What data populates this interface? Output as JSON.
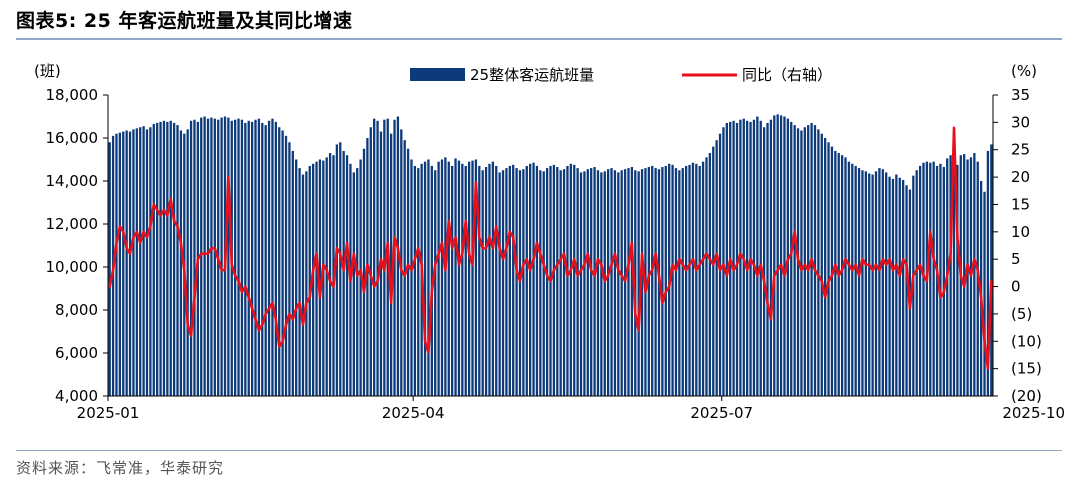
{
  "title": "图表5:   25 年客运航班量及其同比增速",
  "source": "资料来源：飞常准，华泰研究",
  "chart_data": {
    "type": "bar+line",
    "left_unit": "(班)",
    "right_unit": "(%)",
    "left_axis": {
      "min": 4000,
      "max": 18000,
      "ticks": [
        4000,
        6000,
        8000,
        10000,
        12000,
        14000,
        16000,
        18000
      ],
      "tick_labels": [
        "4,000",
        "6,000",
        "8,000",
        "10,000",
        "12,000",
        "14,000",
        "16,000",
        "18,000"
      ]
    },
    "right_axis": {
      "min": -20,
      "max": 35,
      "ticks": [
        -20,
        -15,
        -10,
        -5,
        0,
        5,
        10,
        15,
        20,
        25,
        30,
        35
      ],
      "tick_labels": [
        "(20)",
        "(15)",
        "(10)",
        "(5)",
        "0",
        "5",
        "10",
        "15",
        "20",
        "25",
        "30",
        "35"
      ]
    },
    "x_tick_labels": [
      "2025-01",
      "2025-04",
      "2025-07",
      "2025-10"
    ],
    "x_tick_days": [
      0,
      90,
      181,
      273
    ],
    "colors": {
      "bars": "#0d3a7a",
      "line": "#e8101a"
    },
    "series": [
      {
        "name": "25整体客运航班量",
        "type": "bar",
        "values": [
          15800,
          16100,
          16200,
          16250,
          16300,
          16350,
          16300,
          16400,
          16450,
          16500,
          16550,
          16400,
          16500,
          16650,
          16700,
          16750,
          16800,
          16750,
          16800,
          16700,
          16600,
          16350,
          16200,
          16400,
          16800,
          16850,
          16750,
          16950,
          17000,
          16900,
          16950,
          16900,
          16850,
          16950,
          17000,
          16950,
          16800,
          16850,
          16900,
          16850,
          16700,
          16800,
          16750,
          16850,
          16900,
          16700,
          16600,
          16800,
          16900,
          16750,
          16500,
          16350,
          16100,
          15800,
          15400,
          15000,
          14600,
          14300,
          14450,
          14700,
          14800,
          14900,
          15000,
          14950,
          15100,
          15300,
          15200,
          15700,
          15800,
          15400,
          15200,
          14800,
          14400,
          14600,
          15000,
          15500,
          16000,
          16500,
          16900,
          16800,
          16300,
          16850,
          16900,
          16200,
          16850,
          17000,
          16400,
          15900,
          15500,
          15000,
          14700,
          14600,
          14800,
          14900,
          15000,
          14700,
          14500,
          14900,
          15000,
          15100,
          14900,
          14700,
          15050,
          14950,
          14800,
          14700,
          14900,
          14950,
          15000,
          14700,
          14500,
          14650,
          14800,
          14900,
          14700,
          14400,
          14500,
          14600,
          14700,
          14750,
          14600,
          14500,
          14550,
          14700,
          14800,
          14850,
          14700,
          14500,
          14450,
          14600,
          14700,
          14750,
          14650,
          14500,
          14550,
          14700,
          14800,
          14750,
          14600,
          14400,
          14450,
          14550,
          14600,
          14650,
          14500,
          14400,
          14450,
          14550,
          14600,
          14500,
          14400,
          14500,
          14550,
          14600,
          14650,
          14500,
          14450,
          14550,
          14600,
          14650,
          14700,
          14600,
          14550,
          14650,
          14700,
          14800,
          14750,
          14600,
          14500,
          14600,
          14700,
          14750,
          14850,
          14800,
          14700,
          14900,
          15100,
          15300,
          15600,
          15900,
          16200,
          16500,
          16700,
          16750,
          16800,
          16700,
          16850,
          16900,
          16800,
          16750,
          16850,
          17000,
          16800,
          16500,
          16700,
          16850,
          17050,
          17100,
          17050,
          17000,
          16900,
          16750,
          16600,
          16450,
          16350,
          16500,
          16600,
          16700,
          16600,
          16400,
          16200,
          16000,
          15800,
          15600,
          15400,
          15300,
          15200,
          15100,
          14900,
          14800,
          14700,
          14600,
          14500,
          14450,
          14350,
          14300,
          14450,
          14600,
          14550,
          14400,
          14200,
          14100,
          14300,
          14150,
          14050,
          13800,
          13600,
          14250,
          14500,
          14700,
          14850,
          14900,
          14850,
          14900,
          14700,
          14800,
          14650,
          15050,
          15200,
          14800,
          14750,
          15200,
          15250,
          15000,
          15100,
          15300,
          14900,
          14000,
          13500,
          15400,
          15700
        ],
        "note": "Daily values in flights, one per day from 2025-01-01."
      },
      {
        "name": "同比（右轴）",
        "type": "line",
        "axis": "right",
        "values": [
          0,
          3,
          8,
          11,
          10,
          7,
          6,
          9,
          10,
          8,
          10,
          9,
          11,
          15,
          14,
          13,
          14,
          13,
          16,
          12,
          11,
          8,
          3,
          -7,
          -9,
          -2,
          5,
          6,
          6,
          6,
          7,
          7,
          5,
          3,
          3,
          20,
          4,
          2,
          1,
          -1,
          0,
          -2,
          -4,
          -6,
          -8,
          -7,
          -5,
          -4,
          -3,
          -6,
          -11,
          -10,
          -7,
          -5,
          -6,
          -4,
          -3,
          -7,
          -3,
          -2,
          3,
          6,
          -2,
          4,
          3,
          1,
          0,
          7,
          6,
          3,
          8,
          1,
          6,
          2,
          3,
          -1,
          4,
          2,
          0,
          1,
          5,
          3,
          8,
          -3,
          9,
          7,
          3,
          2,
          4,
          3,
          5,
          7,
          4,
          -10,
          -12,
          -1,
          4,
          6,
          8,
          3,
          12,
          7,
          9,
          4,
          6,
          12,
          6,
          4,
          19,
          9,
          7,
          7,
          9,
          7,
          11,
          7,
          5,
          7,
          10,
          9,
          3,
          1,
          4,
          5,
          3,
          5,
          8,
          6,
          4,
          2,
          1,
          3,
          4,
          5,
          6,
          2,
          3,
          5,
          2,
          3,
          4,
          6,
          3,
          2,
          5,
          4,
          1,
          2,
          4,
          6,
          3,
          2,
          1,
          4,
          8,
          -5,
          -8,
          6,
          -1,
          2,
          3,
          6,
          2,
          -3,
          -1,
          0,
          4,
          3,
          5,
          4,
          3,
          4,
          5,
          3,
          4,
          5,
          6,
          5,
          4,
          6,
          3,
          4,
          2,
          5,
          3,
          4,
          6,
          5,
          3,
          5,
          4,
          2,
          4,
          1,
          -3,
          -6,
          2,
          3,
          4,
          2,
          5,
          6,
          10,
          5,
          3,
          4,
          3,
          5,
          3,
          2,
          1,
          -2,
          1,
          2,
          4,
          2,
          3,
          5,
          4,
          3,
          4,
          2,
          5,
          4,
          4,
          3,
          4,
          3,
          5,
          4,
          5,
          3,
          4,
          2,
          5,
          4,
          -4,
          2,
          3,
          4,
          2,
          1,
          10,
          5,
          3,
          -2,
          -1,
          2,
          6,
          29,
          9,
          2,
          0,
          4,
          2,
          5,
          3,
          -2,
          -10,
          -15,
          1,
          0,
          4,
          5,
          2,
          0,
          3,
          2,
          3,
          5,
          7,
          2,
          0,
          -2,
          2,
          6
        ]
      }
    ]
  }
}
